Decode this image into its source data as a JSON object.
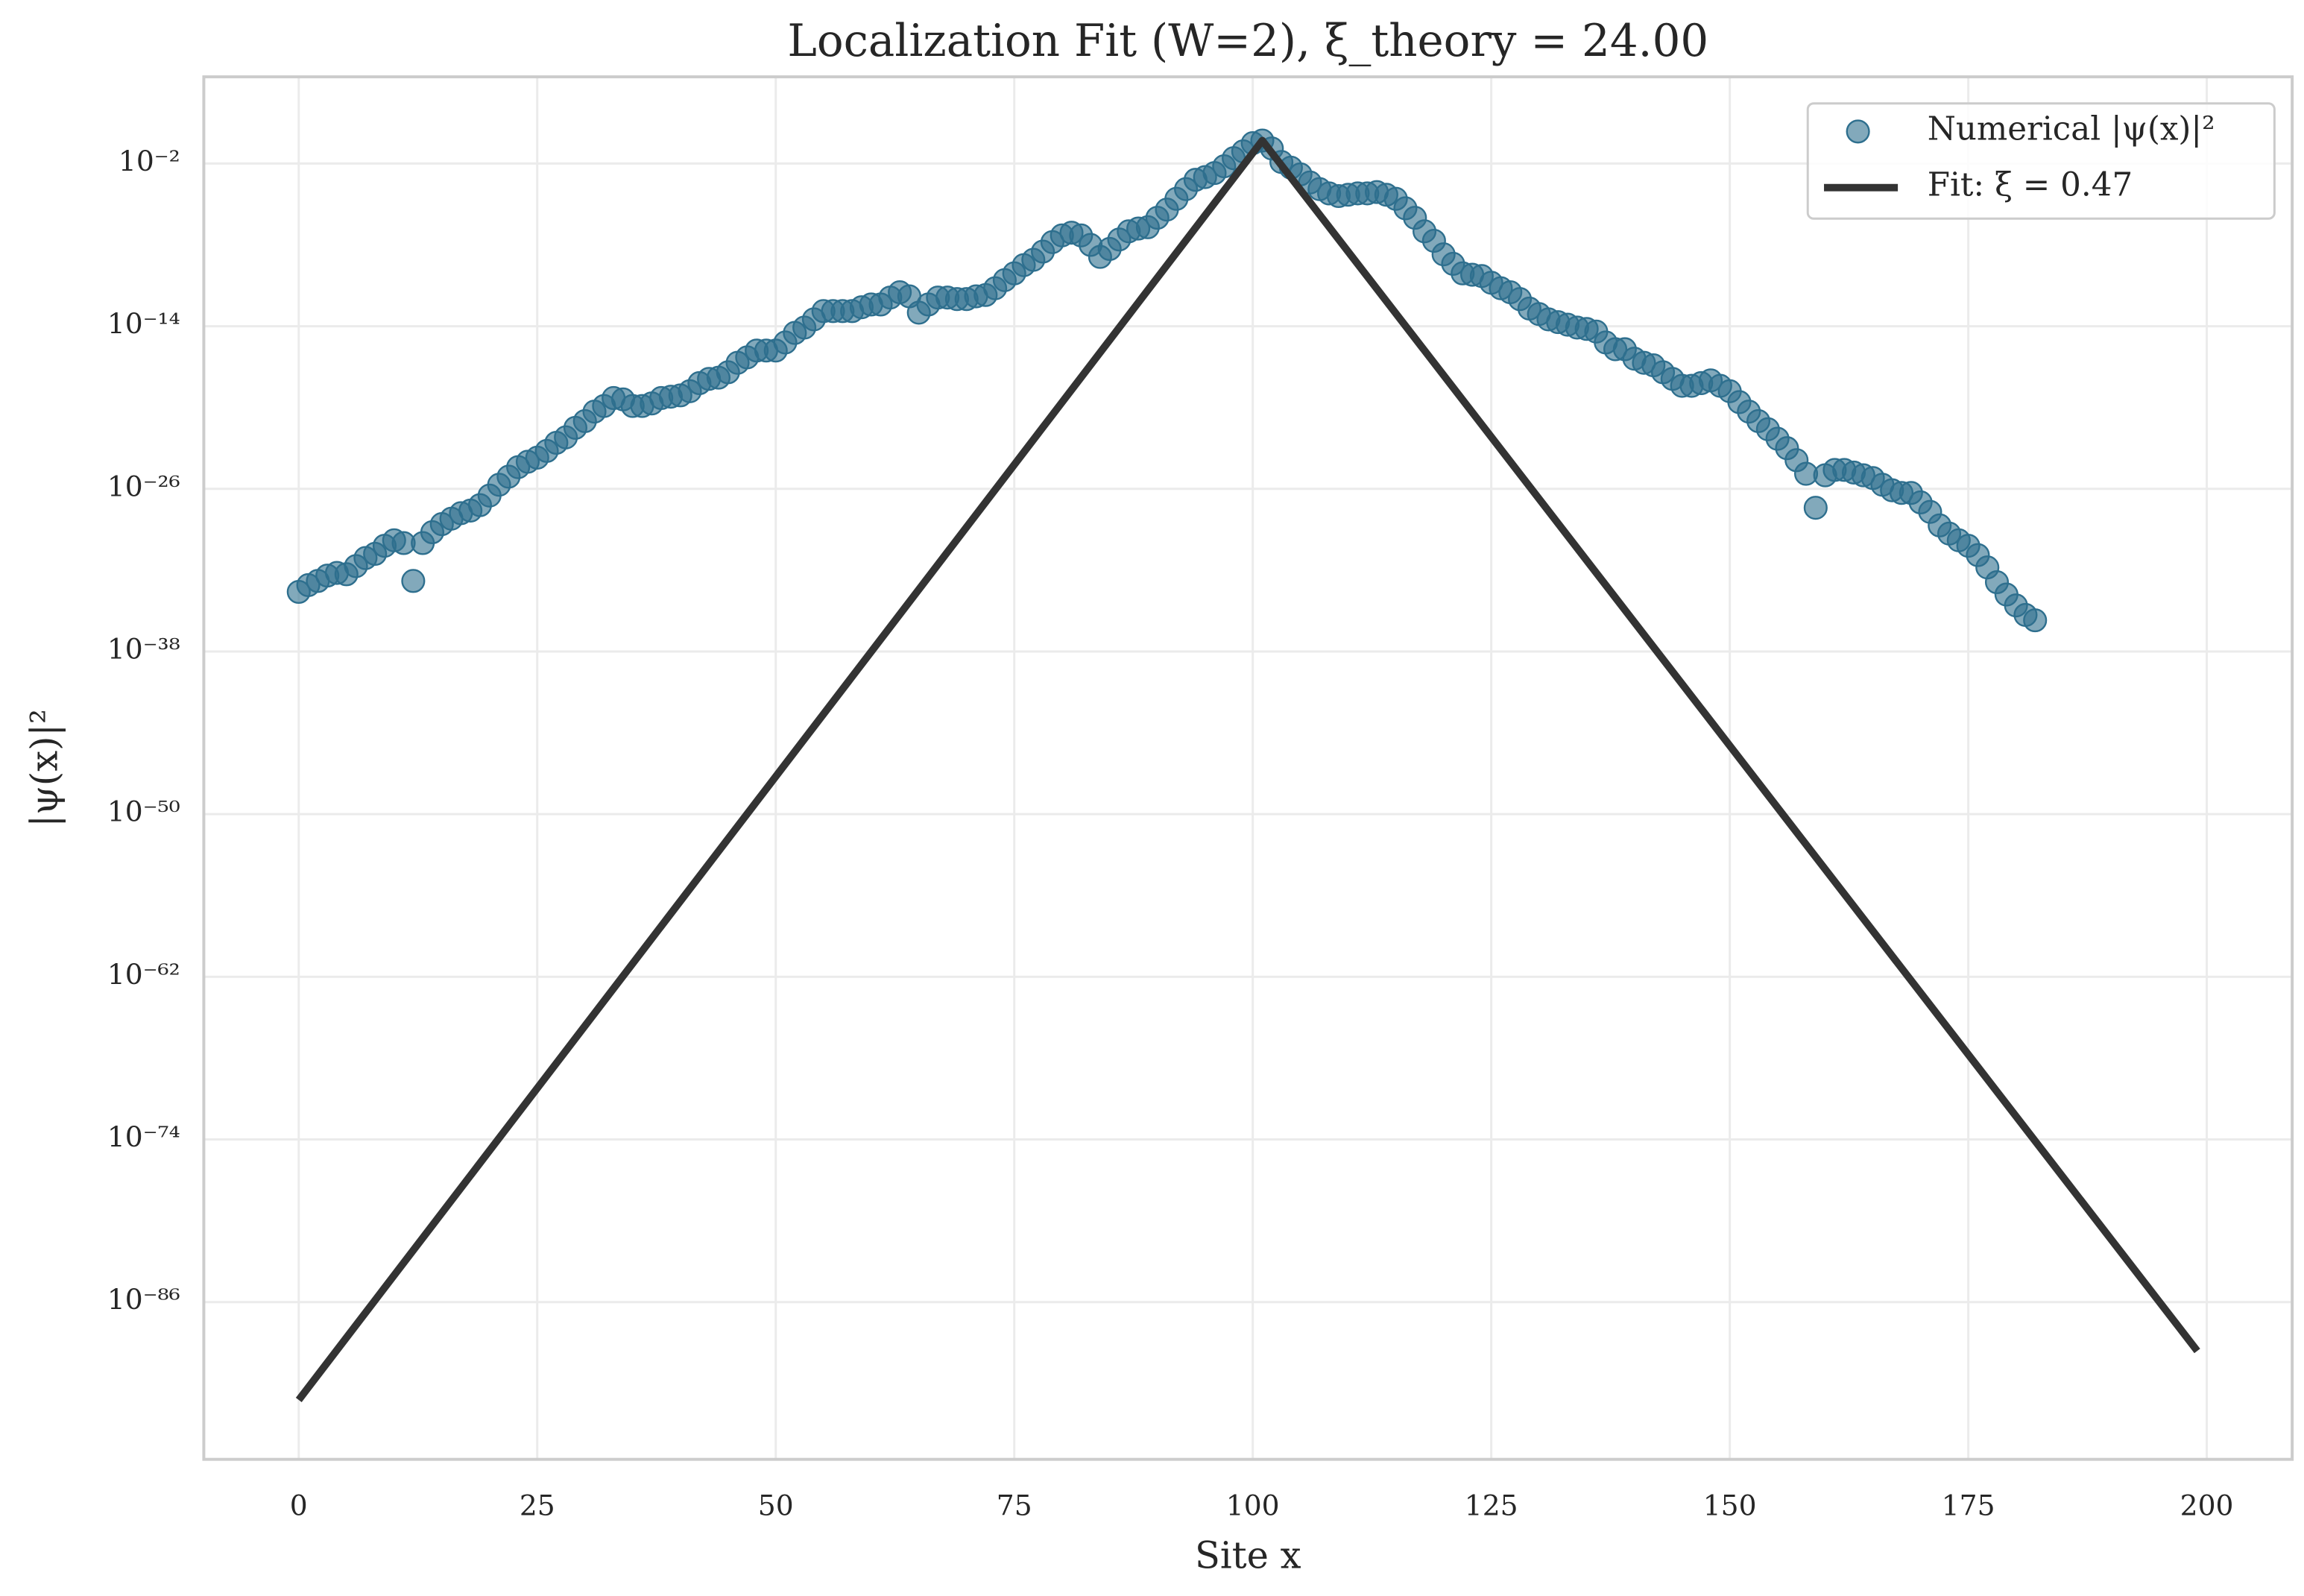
{
  "chart_data": {
    "type": "scatter",
    "title": "Localization Fit (W=2), ξ_theory = 24.00",
    "xlabel": "Site x",
    "ylabel": "|ψ(x)|²",
    "yscale": "log",
    "grid": true,
    "legend": "upper right",
    "xlim": [
      -9.95,
      208.95
    ],
    "ylim": [
      2.5e-98,
      25000.0
    ],
    "xticks": [
      0,
      25,
      50,
      75,
      100,
      125,
      150,
      175,
      200
    ],
    "yticks": [
      {
        "value": 1e-86,
        "label": "10⁻⁸⁶"
      },
      {
        "value": 1e-74,
        "label": "10⁻⁷⁴"
      },
      {
        "value": 1e-62,
        "label": "10⁻⁶²"
      },
      {
        "value": 1e-50,
        "label": "10⁻⁵⁰"
      },
      {
        "value": 1e-38,
        "label": "10⁻³⁸"
      },
      {
        "value": 1e-26,
        "label": "10⁻²⁶"
      },
      {
        "value": 1e-14,
        "label": "10⁻¹⁴"
      },
      {
        "value": 0.01,
        "label": "10⁻²"
      }
    ],
    "series": [
      {
        "name": "Numerical |ψ(x)|²",
        "type": "scatter",
        "color": "#2e6f8e",
        "x": [
          0,
          1,
          2,
          3,
          4,
          5,
          6,
          7,
          8,
          9,
          10,
          11,
          12,
          13,
          14,
          15,
          16,
          17,
          18,
          19,
          20,
          21,
          22,
          23,
          24,
          25,
          26,
          27,
          28,
          29,
          30,
          31,
          32,
          33,
          34,
          35,
          36,
          37,
          38,
          39,
          40,
          41,
          42,
          43,
          44,
          45,
          46,
          47,
          48,
          49,
          50,
          51,
          52,
          53,
          54,
          55,
          56,
          57,
          58,
          59,
          60,
          61,
          62,
          63,
          64,
          65,
          66,
          67,
          68,
          69,
          70,
          71,
          72,
          73,
          74,
          75,
          76,
          77,
          78,
          79,
          80,
          81,
          82,
          83,
          84,
          85,
          86,
          87,
          88,
          89,
          90,
          91,
          92,
          93,
          94,
          95,
          96,
          97,
          98,
          99,
          100,
          101,
          102,
          103,
          104,
          105,
          106,
          107,
          108,
          109,
          110,
          111,
          112,
          113,
          114,
          115,
          116,
          117,
          118,
          119,
          120,
          121,
          122,
          123,
          124,
          125,
          126,
          127,
          128,
          129,
          130,
          131,
          132,
          133,
          134,
          135,
          136,
          137,
          138,
          139,
          140,
          141,
          142,
          143,
          144,
          145,
          146,
          147,
          148,
          149,
          150,
          151,
          152,
          153,
          154,
          155,
          156,
          157,
          158,
          159,
          160,
          161,
          162,
          163,
          164,
          165,
          166,
          167,
          168,
          169,
          170,
          171,
          172,
          173,
          174,
          175,
          176,
          177,
          178,
          179,
          180,
          181,
          182
        ],
        "values": [
          2.5e-34,
          7.9e-34,
          1.6e-33,
          4e-33,
          6.3e-33,
          5e-33,
          2e-32,
          7.9e-32,
          1.6e-31,
          6.3e-31,
          1.6e-30,
          1e-30,
          1.6e-33,
          1e-30,
          6.3e-30,
          2.5e-29,
          6.3e-29,
          1.6e-28,
          2.5e-28,
          6.3e-28,
          3.2e-27,
          2e-26,
          7.9e-26,
          4e-25,
          1e-24,
          2e-24,
          6.3e-24,
          2.5e-23,
          6.3e-23,
          3.2e-22,
          1e-21,
          5e-21,
          1.3e-20,
          5e-20,
          4e-20,
          1.3e-20,
          1.3e-20,
          2e-20,
          5e-20,
          6.3e-20,
          7.9e-20,
          1.6e-19,
          6.3e-19,
          1.3e-18,
          1.6e-18,
          4e-18,
          2e-17,
          5e-17,
          1.6e-16,
          1.6e-16,
          1.6e-16,
          6.3e-16,
          3.2e-15,
          7.9e-15,
          3.2e-14,
          1.3e-13,
          1.3e-13,
          1.3e-13,
          1.3e-13,
          2.5e-13,
          4e-13,
          4e-13,
          1.3e-12,
          3.2e-12,
          1.6e-12,
          1e-13,
          4e-13,
          1.3e-12,
          1.3e-12,
          1e-12,
          1e-12,
          1.6e-12,
          2e-12,
          6.3e-12,
          2.5e-11,
          7.9e-11,
          3.2e-10,
          7.9e-10,
          3.2e-09,
          1.6e-08,
          5e-08,
          7.9e-08,
          5e-08,
          1e-08,
          1.3e-09,
          5e-09,
          2.5e-08,
          1e-07,
          1.6e-07,
          2e-07,
          1e-06,
          4e-06,
          2.5e-05,
          0.00013,
          0.00063,
          0.001,
          0.002,
          0.0063,
          0.025,
          0.079,
          0.32,
          0.5,
          0.13,
          0.013,
          0.005,
          0.0016,
          0.0004,
          0.00013,
          6.3e-05,
          4e-05,
          5e-05,
          6.3e-05,
          6.3e-05,
          7.9e-05,
          5e-05,
          2.5e-05,
          5e-06,
          1e-06,
          1e-07,
          2e-08,
          2e-09,
          4e-10,
          7.9e-11,
          6.3e-11,
          5e-11,
          1.6e-11,
          6.3e-12,
          3.2e-12,
          1e-12,
          2e-13,
          7.9e-14,
          3.2e-14,
          2e-14,
          1.3e-14,
          7.9e-15,
          6.3e-15,
          4e-15,
          6.3e-16,
          2e-16,
          2e-16,
          4e-17,
          2e-17,
          1.3e-17,
          4e-18,
          1.3e-18,
          4e-19,
          4e-19,
          6.3e-19,
          1e-18,
          4e-19,
          1.6e-19,
          2.5e-20,
          5e-21,
          1e-21,
          2.5e-22,
          5e-23,
          1e-23,
          1.3e-24,
          1.3e-25,
          4e-28,
          1e-25,
          2.5e-25,
          2.5e-25,
          1.6e-25,
          1e-25,
          6.3e-26,
          2e-26,
          7.9e-27,
          5e-27,
          5e-27,
          1e-27,
          2e-28,
          2e-29,
          5e-30,
          1.6e-30,
          6.3e-31,
          1.3e-31,
          1.6e-32,
          1.3e-33,
          1.6e-34,
          2.5e-35,
          5e-36,
          2e-36
        ]
      },
      {
        "name": "Fit: ξ = 0.47",
        "type": "line",
        "color": "#333333",
        "x": [
          0,
          101,
          199
        ],
        "values": [
          6e-94,
          0.5,
          2.5e-90
        ]
      }
    ]
  }
}
